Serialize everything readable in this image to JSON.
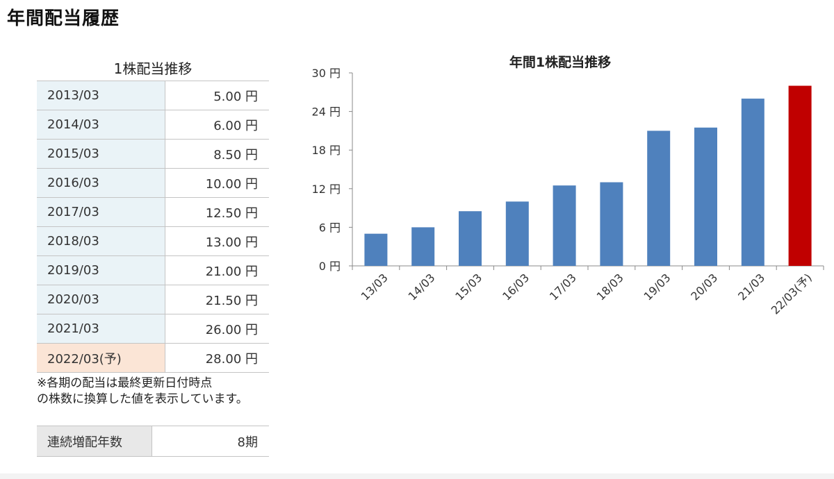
{
  "page": {
    "title": "年間配当履歴"
  },
  "dividend_table": {
    "caption": "1株配当推移",
    "rows": [
      {
        "period": "2013/03",
        "amount": "5.00 円",
        "forecast": false
      },
      {
        "period": "2014/03",
        "amount": "6.00 円",
        "forecast": false
      },
      {
        "period": "2015/03",
        "amount": "8.50 円",
        "forecast": false
      },
      {
        "period": "2016/03",
        "amount": "10.00 円",
        "forecast": false
      },
      {
        "period": "2017/03",
        "amount": "12.50 円",
        "forecast": false
      },
      {
        "period": "2018/03",
        "amount": "13.00 円",
        "forecast": false
      },
      {
        "period": "2019/03",
        "amount": "21.00 円",
        "forecast": false
      },
      {
        "period": "2020/03",
        "amount": "21.50 円",
        "forecast": false
      },
      {
        "period": "2021/03",
        "amount": "26.00 円",
        "forecast": false
      },
      {
        "period": "2022/03(予)",
        "amount": "28.00 円",
        "forecast": true
      }
    ],
    "note_line1": "※各期の配当は最終更新日付時点",
    "note_line2": "の株数に換算した値を表示しています。"
  },
  "streak": {
    "label": "連続増配年数",
    "value": "8期"
  },
  "colors": {
    "bar": "#4f81bd",
    "bar_forecast": "#c00000",
    "table_period_bg": "#eaf3f7",
    "table_forecast_bg": "#fbe5d6"
  },
  "chart_data": {
    "type": "bar",
    "title": "年間1株配当推移",
    "categories": [
      "13/03",
      "14/03",
      "15/03",
      "16/03",
      "17/03",
      "18/03",
      "19/03",
      "20/03",
      "21/03",
      "22/03(予)"
    ],
    "values": [
      5,
      6,
      8.5,
      10,
      12.5,
      13,
      21,
      21.5,
      26,
      28
    ],
    "forecast_index": 9,
    "ylim": [
      0,
      30
    ],
    "yticks": [
      0,
      6,
      12,
      18,
      24,
      30
    ],
    "ytick_labels": [
      "0 円",
      "6 円",
      "12 円",
      "18 円",
      "24 円",
      "30 円"
    ],
    "xlabel": "",
    "ylabel": "",
    "grid": false,
    "legend": "none"
  }
}
